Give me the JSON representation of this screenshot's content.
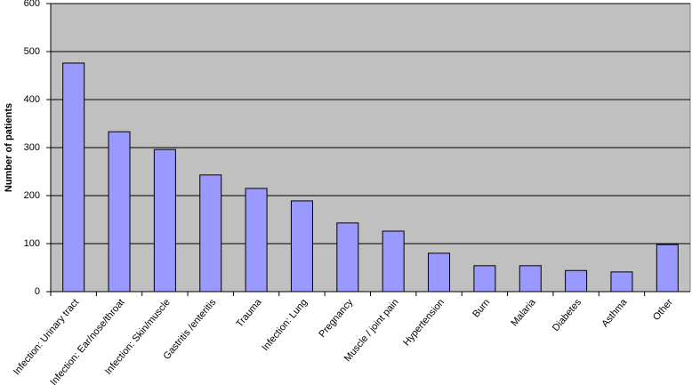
{
  "chart_data": {
    "type": "bar",
    "y_label": "Number of patients",
    "categories": [
      "Infection: Urinary tract",
      "Infection: Ear/nose/throat",
      "Infection: Skin/muscle",
      "Gastritis /enteritis",
      "Trauma",
      "Infection: Lung",
      "Pregnancy",
      "Muscle / joint pain",
      "Hypertension",
      "Burn",
      "Malaria",
      "Diabetes",
      "Asthma",
      "Other"
    ],
    "values": [
      476,
      333,
      296,
      243,
      215,
      189,
      143,
      126,
      80,
      54,
      54,
      44,
      41,
      98
    ],
    "color": "#9999ff",
    "ylim": [
      0,
      600
    ],
    "yticks": [
      0,
      100,
      200,
      300,
      400,
      500,
      600
    ],
    "grid": true
  }
}
